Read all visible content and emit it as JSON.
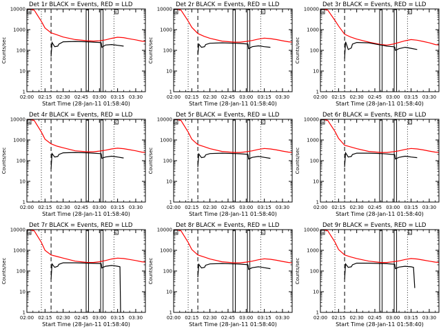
{
  "figure": {
    "xlabel": "Start Time (28-Jan-11 01:58:40)",
    "ylabel": "Counts/sec",
    "colors": {
      "events": "#000000",
      "lld": "#ff0000",
      "axis": "#000000",
      "background": "#ffffff"
    }
  },
  "chart_data": {
    "type": "line",
    "y_scale": "log",
    "ylim": [
      1,
      10000
    ],
    "yticks": [
      1,
      10,
      100,
      1000,
      10000
    ],
    "ytick_labels": [
      "1",
      "10",
      "100",
      "1000",
      "10000"
    ],
    "x_units": "minutes since 02:00",
    "xlim": [
      0,
      98
    ],
    "xticks": [
      0,
      15,
      30,
      45,
      60,
      75,
      90
    ],
    "xtick_labels": [
      "02:00",
      "02:15",
      "02:30",
      "02:45",
      "03:00",
      "03:15",
      "03:30"
    ],
    "dotted_markers": [
      12,
      72
    ],
    "dashed_marker": 20,
    "box_markers": [
      [
        49,
        51
      ],
      [
        61,
        63
      ]
    ],
    "corner_labels": [
      "a",
      "c"
    ],
    "panels": [
      {
        "title": "Det 1r BLACK = Events, RED = LLD",
        "series": [
          {
            "name": "LLD",
            "color": "#ff0000",
            "x": [
              0,
              6,
              12,
              15,
              20,
              25,
              30,
              40,
              50,
              55,
              60,
              65,
              70,
              75,
              80,
              85,
              90,
              95,
              98
            ],
            "y": [
              10000,
              9000,
              2500,
              1200,
              700,
              560,
              440,
              330,
              290,
              280,
              290,
              320,
              380,
              430,
              410,
              360,
              320,
              280,
              270
            ]
          },
          {
            "name": "Events",
            "color": "#000000",
            "x": [
              20,
              20.8,
              23,
              25.5,
              26.5,
              30,
              40,
              50,
              55,
              60,
              61.5,
              62,
              65,
              70,
              72,
              75,
              80
            ],
            "y": [
              50,
              240,
              150,
              160,
              200,
              260,
              270,
              260,
              250,
              240,
              230,
              140,
              180,
              190,
              185,
              175,
              160
            ]
          }
        ]
      },
      {
        "title": "Det 2r BLACK = Events, RED = LLD",
        "series": [
          {
            "name": "LLD",
            "color": "#ff0000",
            "x": [
              0,
              6,
              12,
              15,
              20,
              25,
              30,
              40,
              50,
              55,
              60,
              65,
              70,
              75,
              80,
              85,
              90,
              95,
              98
            ],
            "y": [
              10000,
              9000,
              2600,
              1300,
              650,
              480,
              380,
              280,
              250,
              250,
              270,
              300,
              350,
              390,
              370,
              330,
              290,
              260,
              250
            ]
          },
          {
            "name": "Events",
            "color": "#000000",
            "x": [
              20,
              20.8,
              23,
              25.5,
              26.5,
              30,
              40,
              50,
              55,
              60,
              61.5,
              62,
              65,
              70,
              72,
              75,
              80
            ],
            "y": [
              60,
              200,
              140,
              150,
              190,
              220,
              230,
              220,
              215,
              205,
              200,
              120,
              150,
              165,
              160,
              150,
              140
            ]
          }
        ]
      },
      {
        "title": "Det 3r BLACK = Events, RED = LLD",
        "series": [
          {
            "name": "LLD",
            "color": "#ff0000",
            "x": [
              0,
              6,
              12,
              15,
              20,
              25,
              30,
              40,
              50,
              55,
              60,
              65,
              70,
              75,
              80,
              85,
              90,
              95,
              98
            ],
            "y": [
              10000,
              9000,
              2800,
              1500,
              600,
              440,
              350,
              250,
              190,
              180,
              200,
              240,
              290,
              330,
              310,
              270,
              230,
              190,
              180
            ]
          },
          {
            "name": "Events",
            "color": "#000000",
            "x": [
              20,
              20.8,
              23,
              25.5,
              26.5,
              30,
              40,
              50,
              55,
              60,
              61.5,
              62,
              65,
              70,
              72,
              75,
              80
            ],
            "y": [
              40,
              260,
              110,
              130,
              200,
              240,
              230,
              180,
              160,
              150,
              145,
              100,
              120,
              140,
              135,
              125,
              110
            ]
          }
        ]
      },
      {
        "title": "Det 4r BLACK = Events, RED = LLD",
        "series": [
          {
            "name": "LLD",
            "color": "#ff0000",
            "x": [
              0,
              6,
              12,
              15,
              20,
              25,
              30,
              40,
              50,
              55,
              60,
              65,
              70,
              75,
              80,
              85,
              90,
              95,
              98
            ],
            "y": [
              10000,
              9000,
              2400,
              1100,
              650,
              500,
              420,
              300,
              270,
              270,
              290,
              320,
              370,
              400,
              380,
              340,
              300,
              260,
              250
            ]
          },
          {
            "name": "Events",
            "color": "#000000",
            "x": [
              20,
              20.8,
              23,
              25.5,
              26.5,
              30,
              40,
              50,
              55,
              60,
              61.5,
              62,
              65,
              70,
              72,
              75,
              80
            ],
            "y": [
              40,
              220,
              150,
              160,
              200,
              240,
              250,
              240,
              230,
              220,
              215,
              130,
              150,
              165,
              160,
              150,
              135
            ]
          }
        ]
      },
      {
        "title": "Det 5r BLACK = Events, RED = LLD",
        "series": [
          {
            "name": "LLD",
            "color": "#ff0000",
            "x": [
              0,
              6,
              12,
              15,
              20,
              25,
              30,
              40,
              50,
              55,
              60,
              65,
              70,
              75,
              80,
              85,
              90,
              95,
              98
            ],
            "y": [
              10000,
              9000,
              2400,
              1100,
              600,
              480,
              380,
              280,
              250,
              250,
              270,
              300,
              350,
              390,
              370,
              330,
              290,
              260,
              250
            ]
          },
          {
            "name": "Events",
            "color": "#000000",
            "x": [
              20,
              20.8,
              23,
              25.5,
              26.5,
              30,
              40,
              50,
              55,
              60,
              61.5,
              62,
              65,
              70,
              72,
              75,
              80
            ],
            "y": [
              50,
              210,
              140,
              150,
              190,
              220,
              230,
              220,
              215,
              205,
              200,
              120,
              145,
              160,
              155,
              145,
              130
            ]
          }
        ]
      },
      {
        "title": "Det 6r BLACK = Events, RED = LLD",
        "series": [
          {
            "name": "LLD",
            "color": "#ff0000",
            "x": [
              0,
              6,
              12,
              15,
              20,
              25,
              30,
              40,
              50,
              55,
              60,
              65,
              70,
              75,
              80,
              85,
              90,
              95,
              98
            ],
            "y": [
              10000,
              9000,
              2600,
              1200,
              560,
              460,
              380,
              280,
              250,
              250,
              270,
              300,
              350,
              390,
              370,
              330,
              290,
              260,
              250
            ]
          },
          {
            "name": "Events",
            "color": "#000000",
            "x": [
              20,
              20.8,
              23,
              25.5,
              26.5,
              30,
              40,
              50,
              55,
              60,
              61.5,
              62,
              65,
              70,
              72,
              75,
              80
            ],
            "y": [
              50,
              240,
              150,
              160,
              200,
              230,
              230,
              220,
              210,
              200,
              195,
              120,
              145,
              165,
              160,
              150,
              140
            ]
          }
        ]
      },
      {
        "title": "Det 7r BLACK = Events, RED = LLD",
        "series": [
          {
            "name": "LLD",
            "color": "#ff0000",
            "x": [
              0,
              6,
              12,
              15,
              20,
              25,
              30,
              40,
              50,
              55,
              60,
              65,
              70,
              75,
              80,
              85,
              90,
              95,
              98
            ],
            "y": [
              10000,
              9000,
              2400,
              1000,
              600,
              500,
              420,
              300,
              260,
              260,
              280,
              320,
              380,
              420,
              400,
              360,
              320,
              280,
              270
            ]
          },
          {
            "name": "Events",
            "color": "#000000",
            "x": [
              20,
              20.8,
              23,
              25.5,
              26.5,
              30,
              40,
              50,
              55,
              60,
              61.5,
              62,
              65,
              70,
              72,
              75,
              77,
              77.5
            ],
            "y": [
              40,
              220,
              150,
              170,
              210,
              250,
              250,
              240,
              235,
              230,
              225,
              140,
              170,
              185,
              180,
              170,
              160,
              1
            ]
          }
        ]
      },
      {
        "title": "Det 8r BLACK = Events, RED = LLD",
        "series": [
          {
            "name": "LLD",
            "color": "#ff0000",
            "x": [
              0,
              6,
              12,
              15,
              20,
              25,
              30,
              40,
              50,
              55,
              60,
              65,
              70,
              75,
              80,
              85,
              90,
              95,
              98
            ],
            "y": [
              10000,
              9000,
              2400,
              1100,
              600,
              480,
              380,
              280,
              250,
              250,
              270,
              300,
              350,
              390,
              370,
              330,
              290,
              260,
              250
            ]
          },
          {
            "name": "Events",
            "color": "#000000",
            "x": [
              20,
              20.8,
              23,
              25.5,
              26.5,
              30,
              40,
              50,
              55,
              60,
              61.5,
              62,
              65,
              70,
              72,
              75,
              80
            ],
            "y": [
              50,
              210,
              140,
              150,
              190,
              220,
              230,
              220,
              215,
              205,
              200,
              120,
              145,
              160,
              155,
              145,
              130
            ]
          }
        ]
      },
      {
        "title": "Det 9r BLACK = Events, RED = LLD",
        "series": [
          {
            "name": "LLD",
            "color": "#ff0000",
            "x": [
              0,
              6,
              12,
              15,
              20,
              25,
              30,
              40,
              50,
              55,
              60,
              65,
              70,
              75,
              80,
              85,
              90,
              95,
              98
            ],
            "y": [
              10000,
              9000,
              2500,
              1100,
              600,
              480,
              400,
              300,
              260,
              260,
              280,
              310,
              360,
              400,
              380,
              340,
              300,
              270,
              260
            ]
          },
          {
            "name": "Events",
            "color": "#000000",
            "x": [
              20,
              20.8,
              23,
              25.5,
              26.5,
              30,
              40,
              50,
              55,
              60,
              61.5,
              62,
              65,
              70,
              72,
              75,
              77,
              78
            ],
            "y": [
              40,
              220,
              150,
              160,
              200,
              240,
              240,
              230,
              225,
              215,
              210,
              130,
              155,
              170,
              165,
              160,
              150,
              15
            ]
          }
        ]
      }
    ]
  }
}
